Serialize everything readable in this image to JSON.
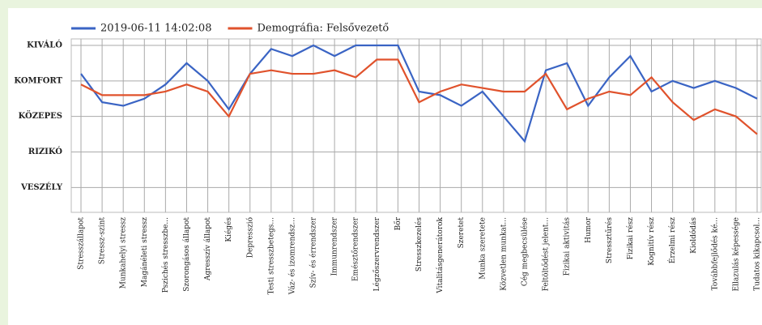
{
  "chart_data": {
    "type": "line",
    "categories": [
      "Stresszállapot",
      "Stressz-szint",
      "Munkahelyi stressz",
      "Magánéleti stressz",
      "Pszichés stresszbe...",
      "Szorongásos állapot",
      "Agresszív állapot",
      "Kiégés",
      "Depresszió",
      "Testi stresszbetegs...",
      "Váz- és izomrendsz...",
      "Szív- és érrendszer",
      "Immunrendszer",
      "Emésztőrendszer",
      "Légzőszervrendszer",
      "Bőr",
      "Stresszkezelés",
      "Vitalitásgenerátorok",
      "Szeretet",
      "Munka szeretete",
      "Közvetlen munkat...",
      "Cég megbecsülése",
      "Feltöltődést jelent...",
      "Fizikai aktivitás",
      "Humor",
      "Stressztűrés",
      "Fizikai rész",
      "Kognitív rész",
      "Érzelmi rész",
      "Kioldódás",
      "Továbbfejlődés ké...",
      "Ellazulás képessége",
      "Tudatos kikapcsol..."
    ],
    "series": [
      {
        "name": "2019-06-11 14:02:08",
        "color": "#3a64c4",
        "values": [
          4.2,
          3.4,
          3.3,
          3.5,
          3.9,
          4.5,
          4.0,
          3.2,
          4.2,
          4.9,
          4.7,
          5.0,
          4.7,
          5.0,
          5.0,
          5.0,
          3.7,
          3.6,
          3.3,
          3.7,
          3.0,
          2.3,
          4.3,
          4.5,
          3.3,
          4.1,
          4.7,
          3.7,
          4.0,
          3.8,
          4.0,
          3.8,
          3.5
        ]
      },
      {
        "name": "Demográfia: Felsővezető",
        "color": "#e0522c",
        "values": [
          3.9,
          3.6,
          3.6,
          3.6,
          3.7,
          3.9,
          3.7,
          3.0,
          4.2,
          4.3,
          4.2,
          4.2,
          4.3,
          4.1,
          4.6,
          4.6,
          3.4,
          3.7,
          3.9,
          3.8,
          3.7,
          3.7,
          4.2,
          3.2,
          3.5,
          3.7,
          3.6,
          4.1,
          3.4,
          2.9,
          3.2,
          3.0,
          2.5
        ]
      }
    ],
    "ylim": [
      0.3,
      5
    ],
    "yticks": [
      {
        "value": 1,
        "label": "VESZÉLY"
      },
      {
        "value": 2,
        "label": "RIZIKÓ"
      },
      {
        "value": 3,
        "label": "KÖZEPES"
      },
      {
        "value": 4,
        "label": "KOMFORT"
      },
      {
        "value": 5,
        "label": "KIVÁLÓ"
      }
    ],
    "grid": true,
    "legend": "top"
  }
}
